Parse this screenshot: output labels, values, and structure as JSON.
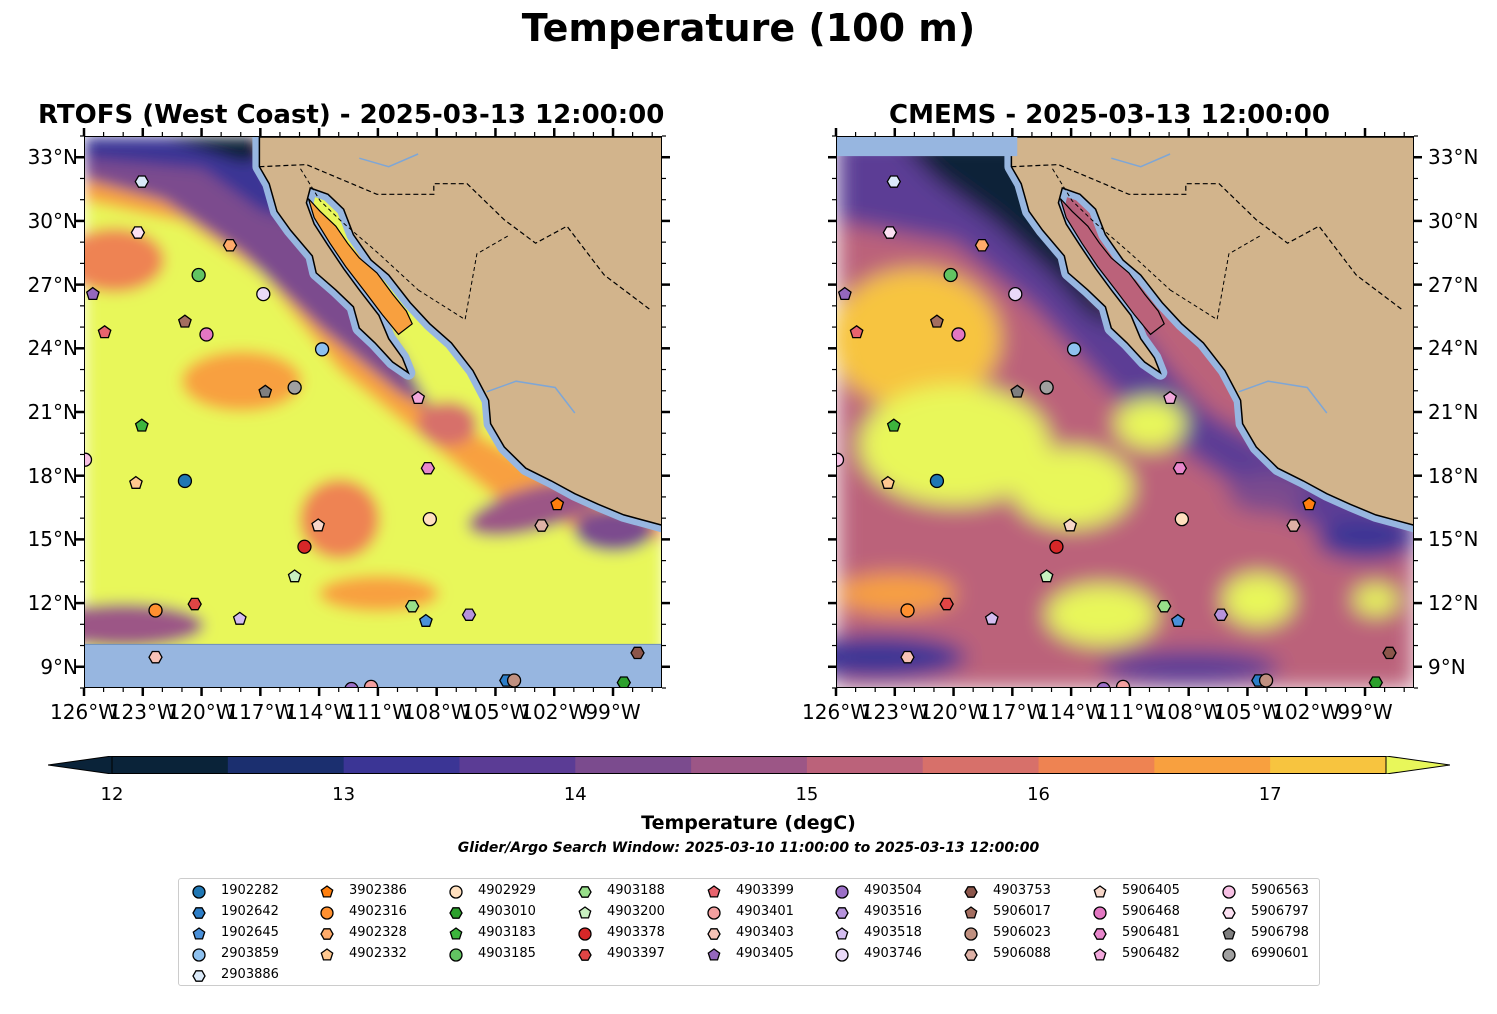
{
  "suptitle": "Temperature (100 m)",
  "panels": [
    {
      "title": "RTOFS (West Coast) - 2025-03-13 12:00:00",
      "model": "rtofs"
    },
    {
      "title": "CMEMS - 2025-03-13 12:00:00",
      "model": "cmems"
    }
  ],
  "map_extent": {
    "lon": [
      -126,
      -96.5
    ],
    "lat": [
      8,
      34
    ]
  },
  "axis": {
    "lon_ticks": [
      "126°W",
      "123°W",
      "120°W",
      "117°W",
      "114°W",
      "111°W",
      "108°W",
      "105°W",
      "102°W",
      "99°W"
    ],
    "lon_values": [
      -126,
      -123,
      -120,
      -117,
      -114,
      -111,
      -108,
      -105,
      -102,
      -99
    ],
    "lat_ticks": [
      "9°N",
      "12°N",
      "15°N",
      "18°N",
      "21°N",
      "24°N",
      "27°N",
      "30°N",
      "33°N"
    ],
    "lat_values": [
      9,
      12,
      15,
      18,
      21,
      24,
      27,
      30,
      33
    ]
  },
  "colorbar": {
    "label": "Temperature (degC)",
    "ticks": [
      "12",
      "13",
      "14",
      "15",
      "16",
      "17"
    ],
    "tick_values": [
      12,
      13,
      14,
      15,
      16,
      17
    ],
    "range": [
      12,
      17.5
    ],
    "extend": "both",
    "colors": [
      "#0a2339",
      "#1b2f6f",
      "#3b3595",
      "#5b3c95",
      "#7b4b8e",
      "#9c5686",
      "#bb627a",
      "#d7706a",
      "#ee8352",
      "#f8a03f",
      "#f7c43f",
      "#e8f75a"
    ]
  },
  "colors": {
    "land": "#d2b48c",
    "ocean_nodata": "#97b6e0",
    "coast": "#000000"
  },
  "search_window": "Glider/Argo Search Window: 2025-03-10 11:00:00 to 2025-03-13 12:00:00",
  "floats": [
    {
      "id": "1902282",
      "marker": "circle",
      "color": "#1f77b4",
      "lon": -120.9,
      "lat": 17.8
    },
    {
      "id": "1902642",
      "marker": "hexagon",
      "color": "#2d7ec7",
      "lon": -104.5,
      "lat": 8.4
    },
    {
      "id": "1902645",
      "marker": "pentagon",
      "color": "#4a90d9",
      "lon": -108.6,
      "lat": 11.2
    },
    {
      "id": "2903859",
      "marker": "circle",
      "color": "#8ec1ef",
      "lon": -113.9,
      "lat": 24.0
    },
    {
      "id": "2903886",
      "marker": "hexagon",
      "color": "#dbeaf9",
      "lon": -123.1,
      "lat": 31.9
    },
    {
      "id": "3902386",
      "marker": "pentagon",
      "color": "#ff7f0e",
      "lon": -101.9,
      "lat": 16.7
    },
    {
      "id": "4902316",
      "marker": "circle",
      "color": "#ff9030",
      "lon": -122.4,
      "lat": 11.7
    },
    {
      "id": "4902328",
      "marker": "hexagon",
      "color": "#ffab6a",
      "lon": -118.6,
      "lat": 28.9
    },
    {
      "id": "4902332",
      "marker": "pentagon",
      "color": "#ffc890",
      "lon": -123.4,
      "lat": 17.7
    },
    {
      "id": "4902929",
      "marker": "circle",
      "color": "#ffe0bf",
      "lon": -108.4,
      "lat": 16.0
    },
    {
      "id": "4903010",
      "marker": "hexagon",
      "color": "#2ca02c",
      "lon": -98.5,
      "lat": 8.3
    },
    {
      "id": "4903183",
      "marker": "pentagon",
      "color": "#3db53d",
      "lon": -123.1,
      "lat": 20.4
    },
    {
      "id": "4903185",
      "marker": "circle",
      "color": "#62c462",
      "lon": -120.2,
      "lat": 27.5
    },
    {
      "id": "4903188",
      "marker": "hexagon",
      "color": "#98df8a",
      "lon": -109.3,
      "lat": 11.9
    },
    {
      "id": "4903200",
      "marker": "pentagon",
      "color": "#c8f0c0",
      "lon": -115.3,
      "lat": 13.3
    },
    {
      "id": "4903378",
      "marker": "circle",
      "color": "#d62728",
      "lon": -114.8,
      "lat": 14.7
    },
    {
      "id": "4903397",
      "marker": "hexagon",
      "color": "#e04545",
      "lon": -120.4,
      "lat": 12.0
    },
    {
      "id": "4903399",
      "marker": "pentagon",
      "color": "#e8646e",
      "lon": -125.0,
      "lat": 24.8
    },
    {
      "id": "4903401",
      "marker": "circle",
      "color": "#f3a0a0",
      "lon": -111.4,
      "lat": 8.1
    },
    {
      "id": "4903403",
      "marker": "hexagon",
      "color": "#f7c2b6",
      "lon": -122.4,
      "lat": 9.5
    },
    {
      "id": "4903405",
      "marker": "pentagon",
      "color": "#9467bd",
      "lon": -125.6,
      "lat": 26.6
    },
    {
      "id": "4903504",
      "marker": "circle",
      "color": "#9b6fc7",
      "lon": -112.4,
      "lat": 8.0
    },
    {
      "id": "4903516",
      "marker": "hexagon",
      "color": "#b693dc",
      "lon": -106.4,
      "lat": 11.5
    },
    {
      "id": "4903518",
      "marker": "pentagon",
      "color": "#d4bdf0",
      "lon": -118.1,
      "lat": 11.3
    },
    {
      "id": "4903746",
      "marker": "circle",
      "color": "#ead9f8",
      "lon": -116.9,
      "lat": 26.6
    },
    {
      "id": "4903753",
      "marker": "hexagon",
      "color": "#8c564b",
      "lon": -97.8,
      "lat": 9.7
    },
    {
      "id": "5906017",
      "marker": "pentagon",
      "color": "#a46e60",
      "lon": -120.9,
      "lat": 25.3
    },
    {
      "id": "5906023",
      "marker": "circle",
      "color": "#c09080",
      "lon": -104.1,
      "lat": 8.4
    },
    {
      "id": "5906088",
      "marker": "hexagon",
      "color": "#deb1a6",
      "lon": -102.7,
      "lat": 15.7
    },
    {
      "id": "5906405",
      "marker": "pentagon",
      "color": "#f7d6c8",
      "lon": -114.1,
      "lat": 15.7
    },
    {
      "id": "5906468",
      "marker": "circle",
      "color": "#e377c2",
      "lon": -119.8,
      "lat": 24.7
    },
    {
      "id": "5906481",
      "marker": "hexagon",
      "color": "#e887cc",
      "lon": -108.5,
      "lat": 18.4
    },
    {
      "id": "5906482",
      "marker": "pentagon",
      "color": "#f2a8dc",
      "lon": -109.0,
      "lat": 21.7
    },
    {
      "id": "5906563",
      "marker": "circle",
      "color": "#f7c0e4",
      "lon": -126.0,
      "lat": 18.8
    },
    {
      "id": "5906797",
      "marker": "hexagon",
      "color": "#fce1f2",
      "lon": -123.3,
      "lat": 29.5
    },
    {
      "id": "5906798",
      "marker": "pentagon",
      "color": "#7f7f7f",
      "lon": -116.8,
      "lat": 22.0
    },
    {
      "id": "6990601",
      "marker": "circle",
      "color": "#a0a0a0",
      "lon": -115.3,
      "lat": 22.2
    }
  ]
}
